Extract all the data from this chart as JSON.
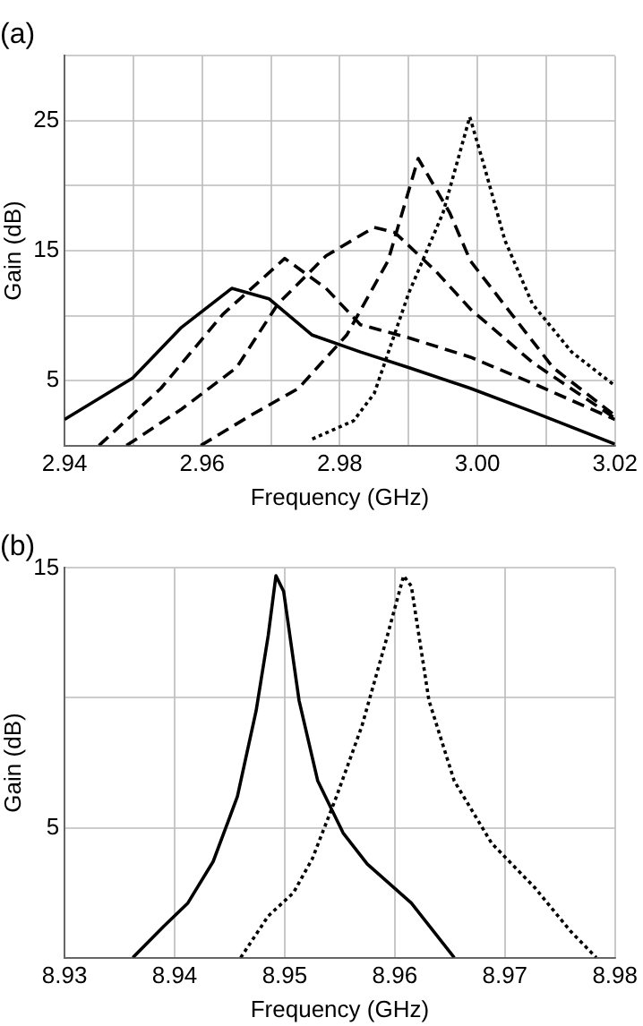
{
  "chart_data": [
    {
      "type": "line",
      "title": "(a)",
      "xlabel": "Frequency (GHz)",
      "ylabel": "Gain (dB)",
      "xlim": [
        2.94,
        3.02
      ],
      "ylim": [
        0,
        30
      ],
      "xticks": [
        2.94,
        {
          "value": 2.95,
          "label": null
        },
        2.96,
        {
          "value": 2.97,
          "label": null
        },
        2.98,
        {
          "value": 2.99,
          "label": null
        },
        {
          "value": 3,
          "label": "3.00"
        },
        {
          "value": 3.01,
          "label": null
        },
        3.02
      ],
      "yticks": [
        {
          "value": 0,
          "label": null
        },
        5,
        {
          "value": 10,
          "label": null
        },
        15,
        {
          "value": 20,
          "label": null
        },
        25,
        {
          "value": 30,
          "label": null
        }
      ],
      "grid": true,
      "legend": false,
      "marker": "none",
      "series": [
        {
          "color": "#000000",
          "line_style": "solid",
          "x": [
            2.94,
            2.9499,
            2.957,
            2.9643,
            2.9697,
            2.976,
            2.983,
            2.99,
            2.999,
            3.008,
            3.02
          ],
          "values": [
            2.0,
            5.2,
            9.1,
            12.1,
            11.3,
            8.5,
            7.2,
            6.0,
            4.4,
            2.6,
            0.1
          ]
        },
        {
          "color": "#000000",
          "line_style": "dashed",
          "x": [
            2.945,
            2.954,
            2.963,
            2.972,
            2.978,
            2.983,
            2.99,
            2.999,
            3.008,
            3.02
          ],
          "values": [
            0,
            4.4,
            10.1,
            14.4,
            12.1,
            9.3,
            8.3,
            6.8,
            4.8,
            2.0
          ]
        },
        {
          "color": "#000000",
          "line_style": "dashed",
          "x": [
            2.949,
            2.957,
            2.965,
            2.971,
            2.978,
            2.985,
            2.988,
            2.994,
            2.999,
            3.008,
            3.02
          ],
          "values": [
            0,
            2.8,
            6.0,
            10.9,
            14.6,
            16.8,
            16.4,
            13.4,
            10.5,
            6.4,
            2.1
          ]
        },
        {
          "color": "#000000",
          "line_style": "dashed",
          "x": [
            2.9598,
            2.967,
            2.974,
            2.981,
            2.987,
            2.9914,
            2.996,
            2.999,
            3.005,
            3.011,
            3.02
          ],
          "values": [
            0,
            2.3,
            4.4,
            8.5,
            14.2,
            22.1,
            17.9,
            14.2,
            10.1,
            6.0,
            2.3
          ]
        },
        {
          "color": "#000000",
          "line_style": "dotted",
          "x": [
            2.976,
            2.982,
            2.985,
            2.99,
            2.995,
            2.9989,
            3.001,
            3.004,
            3.008,
            3.0137,
            3.02
          ],
          "values": [
            0.5,
            1.9,
            4.0,
            11.7,
            17.9,
            25.3,
            21.5,
            15.8,
            10.9,
            7.2,
            4.6
          ]
        }
      ]
    },
    {
      "type": "line",
      "title": "(b)",
      "xlabel": "Frequency (GHz)",
      "ylabel": "Gain (dB)",
      "xlim": [
        8.93,
        8.98
      ],
      "ylim": [
        0,
        15
      ],
      "xticks": [
        8.93,
        8.94,
        8.95,
        8.96,
        8.97,
        8.98
      ],
      "yticks": [
        {
          "value": 0,
          "label": null
        },
        5,
        {
          "value": 10,
          "label": null
        },
        15
      ],
      "grid": true,
      "legend": false,
      "marker": "none",
      "series": [
        {
          "color": "#000000",
          "line_style": "solid",
          "x": [
            8.9362,
            8.939,
            8.9412,
            8.9435,
            8.9457,
            8.9474,
            8.9485,
            8.9492,
            8.9499,
            8.9513,
            8.953,
            8.9553,
            8.9575,
            8.9615,
            8.9654
          ],
          "values": [
            0,
            1.2,
            2.1,
            3.7,
            6.2,
            9.5,
            12.4,
            14.7,
            14.1,
            9.9,
            6.8,
            4.8,
            3.6,
            2.1,
            0
          ]
        },
        {
          "color": "#000000",
          "line_style": "dotted",
          "x": [
            8.946,
            8.9485,
            8.9508,
            8.9525,
            8.9547,
            8.957,
            8.9592,
            8.9608,
            8.9615,
            8.9631,
            8.9654,
            8.9688,
            8.9727,
            8.976,
            8.9783
          ],
          "values": [
            0,
            1.6,
            2.5,
            3.8,
            6.2,
            8.9,
            12.2,
            14.7,
            14.3,
            9.9,
            6.8,
            4.4,
            2.7,
            1.0,
            0
          ]
        }
      ]
    }
  ]
}
